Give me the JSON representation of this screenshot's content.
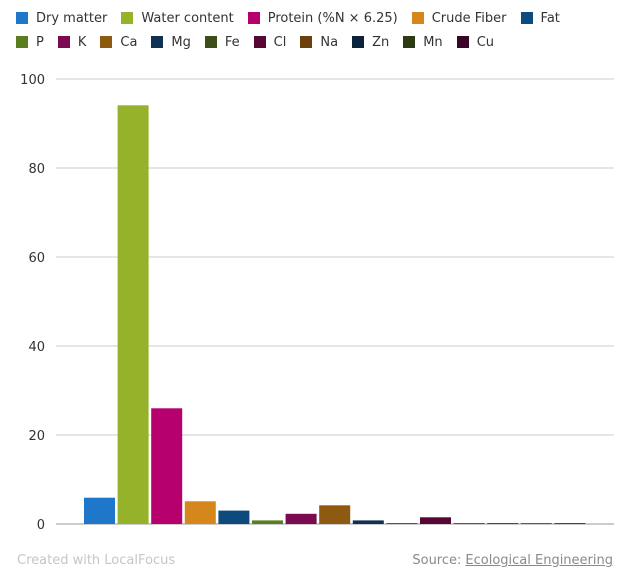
{
  "chart_data": {
    "type": "bar",
    "title": "",
    "xlabel": "",
    "ylabel": "",
    "ylim": [
      0,
      100
    ],
    "yticks": [
      0,
      20,
      40,
      60,
      80,
      100
    ],
    "grid": true,
    "legend_placement": "top",
    "categories": [
      "Dry matter",
      "Water content",
      "Protein (%N × 6.25)",
      "Crude Fiber",
      "Fat",
      "P",
      "K",
      "Ca",
      "Mg",
      "Fe",
      "Cl",
      "Na",
      "Zn",
      "Mn",
      "Cu"
    ],
    "colors": [
      "#1f77c9",
      "#96b22a",
      "#b5006e",
      "#d6871b",
      "#0e4a7d",
      "#5b7d1e",
      "#7a0b51",
      "#8e5a12",
      "#0e3154",
      "#3d4f18",
      "#560734",
      "#6b400b",
      "#0c233c",
      "#2e3a12",
      "#3b0527"
    ],
    "values": [
      5.9,
      94.1,
      26.0,
      5.1,
      3.0,
      0.8,
      2.3,
      4.2,
      0.8,
      0.2,
      1.5,
      0.2,
      0.1,
      0.1,
      0.05
    ]
  },
  "legend_rows": [
    [
      0,
      1,
      2,
      3,
      4
    ],
    [
      5,
      6,
      7,
      8,
      9,
      10,
      11,
      12,
      13,
      14
    ]
  ],
  "footer": {
    "credit": "Created with LocalFocus",
    "source_label": "Source:",
    "source_link": "Ecological Engineering"
  }
}
